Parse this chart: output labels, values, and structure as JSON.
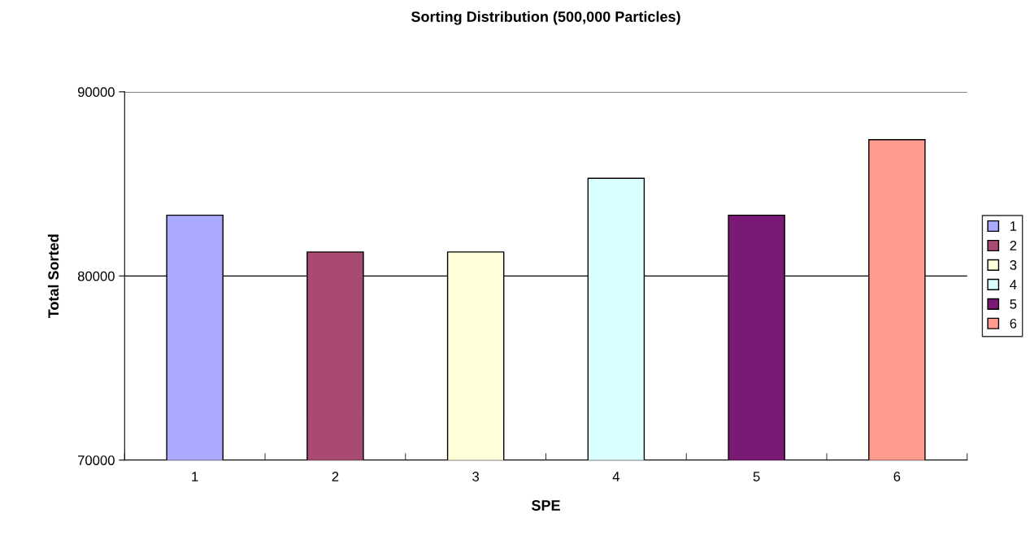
{
  "chart_data": {
    "type": "bar",
    "title": "Sorting Distribution (500,000 Particles)",
    "xlabel": "SPE",
    "ylabel": "Total Sorted",
    "categories": [
      "1",
      "2",
      "3",
      "4",
      "5",
      "6"
    ],
    "series": [
      {
        "name": "1",
        "color": "#aaaaff",
        "values": [
          83300,
          null,
          null,
          null,
          null,
          null
        ]
      },
      {
        "name": "2",
        "color": "#a94a73",
        "values": [
          null,
          81300,
          null,
          null,
          null,
          null
        ]
      },
      {
        "name": "3",
        "color": "#ffffd9",
        "values": [
          null,
          null,
          81300,
          null,
          null,
          null
        ]
      },
      {
        "name": "4",
        "color": "#d9ffff",
        "values": [
          null,
          null,
          null,
          85300,
          null,
          null
        ]
      },
      {
        "name": "5",
        "color": "#7b1a75",
        "values": [
          null,
          null,
          null,
          null,
          83300,
          null
        ]
      },
      {
        "name": "6",
        "color": "#ff9a8f",
        "values": [
          null,
          null,
          null,
          null,
          null,
          87400
        ]
      }
    ],
    "ylim": [
      70000,
      90000
    ],
    "yticks": [
      70000,
      80000,
      90000
    ],
    "grid": "y",
    "legend": "right"
  }
}
